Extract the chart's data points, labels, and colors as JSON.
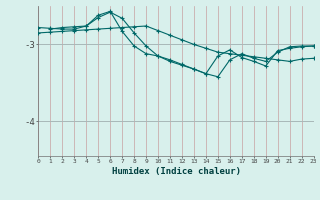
{
  "bg_color": "#d8f0ec",
  "grid_color_v": "#c8a8a8",
  "grid_color_h": "#b8c8c8",
  "line_color": "#006868",
  "xlabel": "Humidex (Indice chaleur)",
  "yticks": [
    -4,
    -3
  ],
  "ylim": [
    -4.45,
    -2.5
  ],
  "xlim": [
    0,
    23
  ],
  "line1_x": [
    0,
    1,
    2,
    3,
    4,
    5,
    6,
    7,
    8,
    9,
    10,
    11,
    12,
    13,
    14,
    15,
    16,
    17,
    18,
    19,
    20,
    21,
    22,
    23
  ],
  "line1_y": [
    -2.85,
    -2.84,
    -2.83,
    -2.82,
    -2.81,
    -2.8,
    -2.79,
    -2.78,
    -2.77,
    -2.76,
    -2.82,
    -2.88,
    -2.94,
    -3.0,
    -3.05,
    -3.1,
    -3.12,
    -3.14,
    -3.16,
    -3.18,
    -3.2,
    -3.22,
    -3.19,
    -3.18
  ],
  "line2_x": [
    1,
    2,
    3,
    4,
    5,
    6,
    7,
    8,
    9,
    10,
    11,
    12,
    13,
    14,
    15,
    16,
    17,
    18,
    19,
    20,
    21,
    22,
    23
  ],
  "line2_y": [
    -2.8,
    -2.78,
    -2.77,
    -2.76,
    -2.65,
    -2.58,
    -2.66,
    -2.85,
    -3.02,
    -3.15,
    -3.22,
    -3.27,
    -3.32,
    -3.38,
    -3.42,
    -3.2,
    -3.12,
    -3.18,
    -3.22,
    -3.1,
    -3.03,
    -3.02,
    -3.02
  ],
  "line3_x": [
    0,
    1,
    2,
    3,
    4,
    5,
    6,
    7,
    8,
    9,
    10,
    11,
    12,
    13,
    14,
    15,
    16,
    17,
    18,
    19,
    20,
    21,
    22,
    23
  ],
  "line3_y": [
    -2.78,
    -2.79,
    -2.8,
    -2.8,
    -2.76,
    -2.62,
    -2.57,
    -2.83,
    -3.02,
    -3.12,
    -3.15,
    -3.2,
    -3.26,
    -3.32,
    -3.38,
    -3.15,
    -3.07,
    -3.17,
    -3.22,
    -3.28,
    -3.08,
    -3.05,
    -3.03,
    -3.02
  ]
}
